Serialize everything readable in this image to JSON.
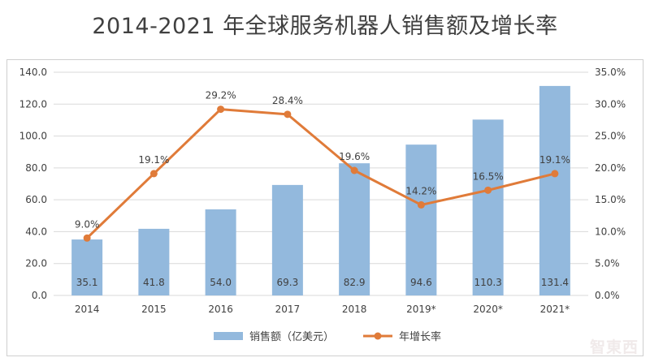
{
  "title": "2014-2021 年全球服务机器人销售额及增长率",
  "watermark": "智東西",
  "colors": {
    "bar": "#93B9DD",
    "line": "#E07B39",
    "grid": "#d9d9d9",
    "axis_text": "#404040",
    "label_text": "#404040"
  },
  "chart_data": {
    "type": "bar",
    "categories": [
      "2014",
      "2015",
      "2016",
      "2017",
      "2018",
      "2019*",
      "2020*",
      "2021*"
    ],
    "series": [
      {
        "name": "销售额（亿美元）",
        "type": "bar",
        "axis": "left",
        "values": [
          35.1,
          41.8,
          54.0,
          69.3,
          82.9,
          94.6,
          110.3,
          131.4
        ],
        "labels": [
          "35.1",
          "41.8",
          "54.0",
          "69.3",
          "82.9",
          "94.6",
          "110.3",
          "131.4"
        ]
      },
      {
        "name": "年增长率",
        "type": "line",
        "axis": "right",
        "values": [
          9.0,
          19.1,
          29.2,
          28.4,
          19.6,
          14.2,
          16.5,
          19.1
        ],
        "labels": [
          "9.0%",
          "19.1%",
          "29.2%",
          "28.4%",
          "19.6%",
          "14.2%",
          "16.5%",
          "19.1%"
        ]
      }
    ],
    "y_left": {
      "min": 0,
      "max": 140,
      "ticks": [
        "0.0",
        "20.0",
        "40.0",
        "60.0",
        "80.0",
        "100.0",
        "120.0",
        "140.0"
      ]
    },
    "y_right": {
      "min": 0,
      "max": 35,
      "ticks": [
        "0.0%",
        "5.0%",
        "10.0%",
        "15.0%",
        "20.0%",
        "25.0%",
        "30.0%",
        "35.0%"
      ]
    },
    "grid": true,
    "legend": "bottom"
  }
}
